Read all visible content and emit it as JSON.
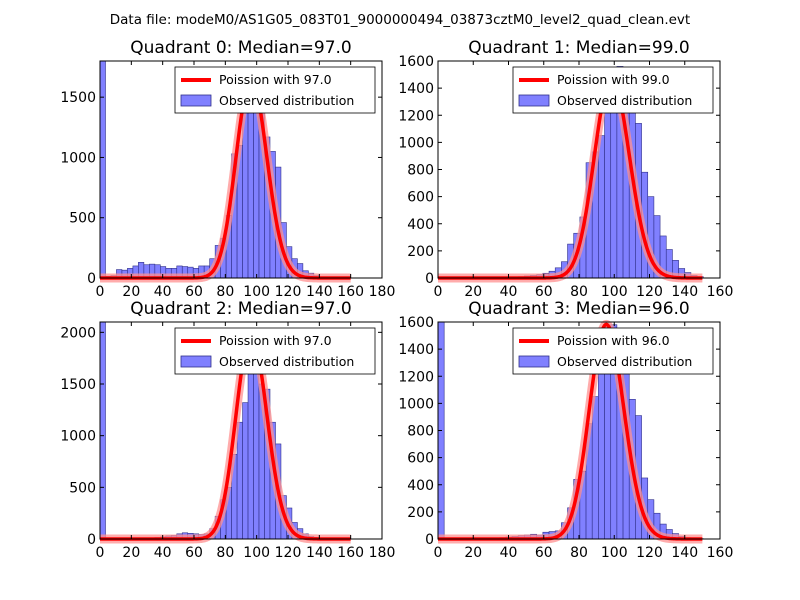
{
  "suptitle": "Data file: modeM0/AS1G05_083T01_9000000494_03873cztM0_level2_quad_clean.evt",
  "colors": {
    "bar_fill": "#8080ff",
    "bar_edge": "#2f2f8a",
    "poisson": "#ff0000",
    "poisson_halo": "#ff9090"
  },
  "legend": {
    "poisson_prefix": "Poission with ",
    "observed": "Observed distribution"
  },
  "chart_data": [
    {
      "type": "bar",
      "title": "Quadrant 0: Median=97.0",
      "median": 97.0,
      "poisson_label": "Poission with 97.0",
      "xlim": [
        0,
        180
      ],
      "ylim": [
        0,
        1800
      ],
      "xticks": [
        0,
        20,
        40,
        60,
        80,
        100,
        120,
        140,
        160,
        180
      ],
      "yticks": [
        0,
        500,
        1000,
        1500
      ],
      "bin_width": 3.5,
      "bin_starts": [
        0,
        3.5,
        7,
        10.5,
        14,
        17.5,
        21,
        24.5,
        28,
        31.5,
        35,
        38.5,
        42,
        45.5,
        49,
        52.5,
        56,
        59.5,
        63,
        66.5,
        70,
        73.5,
        77,
        80.5,
        84,
        87.5,
        91,
        94.5,
        98,
        101.5,
        105,
        108.5,
        112,
        115.5,
        119,
        122.5,
        126,
        129.5,
        133,
        136.5,
        140,
        143.5,
        147,
        150.5
      ],
      "values": [
        1800,
        15,
        20,
        70,
        65,
        80,
        100,
        130,
        110,
        115,
        110,
        95,
        80,
        80,
        100,
        95,
        90,
        80,
        100,
        100,
        160,
        270,
        330,
        520,
        1030,
        1100,
        1370,
        1410,
        1580,
        1660,
        1170,
        1050,
        920,
        460,
        260,
        160,
        120,
        60,
        40,
        20,
        10,
        5,
        3,
        2
      ],
      "poisson": {
        "mean": 97.0,
        "amplitude": 1650,
        "x_range": [
          0,
          160
        ]
      }
    },
    {
      "type": "bar",
      "title": "Quadrant 1: Median=99.0",
      "median": 99.0,
      "poisson_label": "Poission with 99.0",
      "xlim": [
        0,
        160
      ],
      "ylim": [
        0,
        1600
      ],
      "xticks": [
        0,
        20,
        40,
        60,
        80,
        100,
        120,
        140,
        160
      ],
      "yticks": [
        0,
        200,
        400,
        600,
        800,
        1000,
        1200,
        1400,
        1600
      ],
      "bin_width": 3.5,
      "bin_starts": [
        0,
        3.5,
        7,
        10.5,
        14,
        17.5,
        21,
        24.5,
        28,
        31.5,
        35,
        38.5,
        42,
        45.5,
        49,
        52.5,
        56,
        59.5,
        63,
        66.5,
        70,
        73.5,
        77,
        80.5,
        84,
        87.5,
        91,
        94.5,
        98,
        101.5,
        105,
        108.5,
        112,
        115.5,
        119,
        122.5,
        126,
        129.5,
        133,
        136.5,
        140,
        143.5,
        147
      ],
      "values": [
        5,
        2,
        2,
        2,
        2,
        2,
        2,
        2,
        3,
        4,
        5,
        6,
        8,
        10,
        15,
        20,
        25,
        35,
        50,
        75,
        120,
        250,
        330,
        450,
        850,
        930,
        1050,
        1300,
        1400,
        1560,
        1500,
        1270,
        1140,
        780,
        600,
        460,
        310,
        210,
        130,
        70,
        40,
        20,
        10
      ],
      "poisson": {
        "mean": 99.0,
        "amplitude": 1480,
        "x_range": [
          0,
          150
        ]
      }
    },
    {
      "type": "bar",
      "title": "Quadrant 2: Median=97.0",
      "median": 97.0,
      "poisson_label": "Poission with 97.0",
      "xlim": [
        0,
        180
      ],
      "ylim": [
        0,
        2100
      ],
      "xticks": [
        0,
        20,
        40,
        60,
        80,
        100,
        120,
        140,
        160,
        180
      ],
      "yticks": [
        0,
        500,
        1000,
        1500,
        2000
      ],
      "bin_width": 3.5,
      "bin_starts": [
        0,
        3.5,
        7,
        10.5,
        14,
        17.5,
        21,
        24.5,
        28,
        31.5,
        35,
        38.5,
        42,
        45.5,
        49,
        52.5,
        56,
        59.5,
        63,
        66.5,
        70,
        73.5,
        77,
        80.5,
        84,
        87.5,
        91,
        94.5,
        98,
        101.5,
        105,
        108.5,
        112,
        115.5,
        119,
        122.5,
        126,
        129.5,
        133,
        136.5,
        140,
        143.5,
        147,
        150.5
      ],
      "values": [
        2100,
        5,
        5,
        5,
        5,
        5,
        5,
        5,
        8,
        10,
        15,
        20,
        30,
        35,
        50,
        60,
        55,
        50,
        45,
        50,
        100,
        220,
        380,
        500,
        820,
        1130,
        1320,
        1700,
        1680,
        1500,
        1450,
        1130,
        920,
        420,
        300,
        160,
        100,
        50,
        25,
        15,
        8,
        5,
        3,
        2
      ],
      "poisson": {
        "mean": 97.0,
        "amplitude": 1980,
        "x_range": [
          0,
          160
        ]
      }
    },
    {
      "type": "bar",
      "title": "Quadrant 3: Median=96.0",
      "median": 96.0,
      "poisson_label": "Poission with 96.0",
      "xlim": [
        0,
        160
      ],
      "ylim": [
        0,
        1600
      ],
      "xticks": [
        0,
        20,
        40,
        60,
        80,
        100,
        120,
        140,
        160
      ],
      "yticks": [
        0,
        200,
        400,
        600,
        800,
        1000,
        1200,
        1400,
        1600
      ],
      "bin_width": 3.5,
      "bin_starts": [
        0,
        3.5,
        7,
        10.5,
        14,
        17.5,
        21,
        24.5,
        28,
        31.5,
        35,
        38.5,
        42,
        45.5,
        49,
        52.5,
        56,
        59.5,
        63,
        66.5,
        70,
        73.5,
        77,
        80.5,
        84,
        87.5,
        91,
        94.5,
        98,
        101.5,
        105,
        108.5,
        112,
        115.5,
        119,
        122.5,
        126,
        129.5,
        133,
        136.5,
        140,
        143.5,
        147
      ],
      "values": [
        1600,
        5,
        5,
        5,
        5,
        5,
        5,
        5,
        5,
        8,
        10,
        15,
        20,
        25,
        30,
        35,
        30,
        50,
        55,
        60,
        120,
        230,
        440,
        500,
        850,
        1050,
        1250,
        1560,
        1580,
        1540,
        1260,
        1030,
        910,
        450,
        290,
        190,
        110,
        70,
        40,
        20,
        10,
        5,
        3
      ],
      "poisson": {
        "mean": 96.0,
        "amplitude": 1580,
        "x_range": [
          0,
          150
        ]
      }
    }
  ]
}
